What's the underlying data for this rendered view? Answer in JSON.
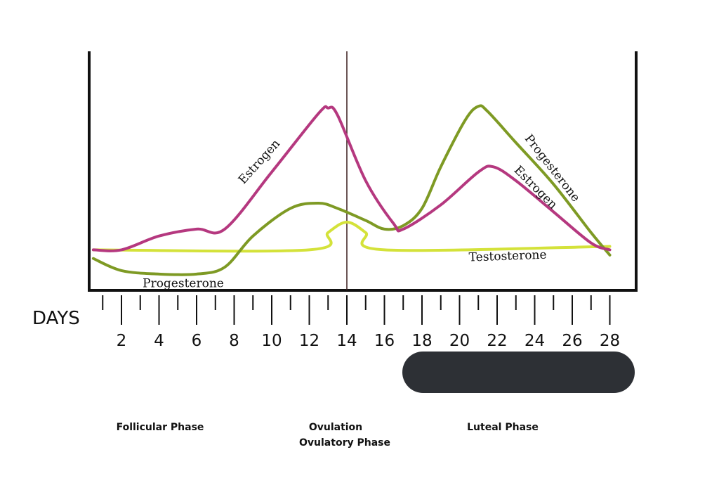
{
  "chart_data": {
    "type": "line",
    "xlabel": "DAYS",
    "ylabel": "",
    "x_range": [
      1,
      28
    ],
    "x_ticks": [
      2,
      4,
      6,
      8,
      10,
      12,
      14,
      16,
      18,
      20,
      22,
      24,
      26,
      28
    ],
    "minor_tick_step": 1,
    "ovulation_marker_day": 14,
    "series": [
      {
        "name": "Estrogen",
        "color": "#b5387f",
        "points": [
          [
            0.5,
            0.1
          ],
          [
            2,
            0.1
          ],
          [
            4,
            0.18
          ],
          [
            6,
            0.22
          ],
          [
            7.5,
            0.22
          ],
          [
            10,
            0.55
          ],
          [
            12.5,
            0.89
          ],
          [
            13,
            0.92
          ],
          [
            13.5,
            0.88
          ],
          [
            15,
            0.5
          ],
          [
            16.5,
            0.25
          ],
          [
            17,
            0.22
          ],
          [
            19,
            0.36
          ],
          [
            21,
            0.55
          ],
          [
            21.8,
            0.58
          ],
          [
            23,
            0.5
          ],
          [
            25,
            0.32
          ],
          [
            27,
            0.14
          ],
          [
            28,
            0.1
          ]
        ]
      },
      {
        "name": "Progesterone",
        "color": "#7e9a24",
        "points": [
          [
            0.5,
            0.05
          ],
          [
            2,
            -0.02
          ],
          [
            4,
            -0.04
          ],
          [
            6,
            -0.04
          ],
          [
            7.5,
            0.0
          ],
          [
            9,
            0.18
          ],
          [
            11,
            0.34
          ],
          [
            12.5,
            0.37
          ],
          [
            13.5,
            0.34
          ],
          [
            15,
            0.27
          ],
          [
            16,
            0.22
          ],
          [
            17,
            0.24
          ],
          [
            18,
            0.34
          ],
          [
            19,
            0.58
          ],
          [
            20.3,
            0.85
          ],
          [
            21,
            0.93
          ],
          [
            21.5,
            0.9
          ],
          [
            23,
            0.72
          ],
          [
            25,
            0.48
          ],
          [
            27,
            0.2
          ],
          [
            28,
            0.07
          ]
        ]
      },
      {
        "name": "Testosterone",
        "color": "#d4e23a",
        "points": [
          [
            0.5,
            0.1
          ],
          [
            12,
            0.1
          ],
          [
            13,
            0.2
          ],
          [
            14,
            0.26
          ],
          [
            15,
            0.2
          ],
          [
            16,
            0.1
          ],
          [
            28,
            0.12
          ]
        ]
      }
    ],
    "curve_labels": [
      {
        "text": "Estrogen",
        "series": "Estrogen",
        "day": 10,
        "rotate": -48
      },
      {
        "text": "Progesterone",
        "series": "Progesterone",
        "day": 3.5,
        "rotate": 0
      },
      {
        "text": "Progesterone",
        "series": "Progesterone",
        "day": 23,
        "rotate": 52
      },
      {
        "text": "Estrogen",
        "series": "Estrogen",
        "day": 22.5,
        "rotate": 45
      },
      {
        "text": "Testosterone",
        "series": "Testosterone",
        "day": 20.5,
        "rotate": -2
      }
    ],
    "phases": [
      {
        "label": "Follicular Phase"
      },
      {
        "label": "Ovulation",
        "sublabel": "Ovulatory Phase"
      },
      {
        "label": "Luteal Phase"
      }
    ],
    "highlight_bar": {
      "from_day": 17.5,
      "to_day": 29,
      "color": "#2d3035"
    }
  }
}
